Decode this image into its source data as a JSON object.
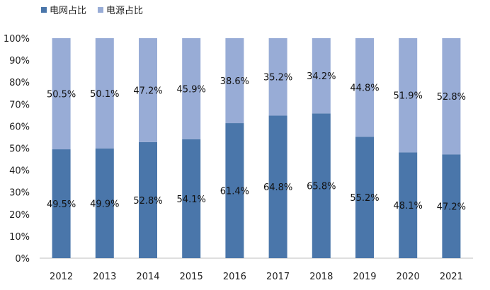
{
  "legend": {
    "series0": "电网占比",
    "series1": "电源占比"
  },
  "colors": {
    "grid_share": "#4a76aa",
    "source_share": "#98acd6"
  },
  "chart_data": {
    "type": "bar",
    "stacked": true,
    "title": "",
    "xlabel": "",
    "ylabel": "",
    "ylim": [
      0,
      100
    ],
    "y_ticks": [
      "0%",
      "10%",
      "20%",
      "30%",
      "40%",
      "50%",
      "60%",
      "70%",
      "80%",
      "90%",
      "100%"
    ],
    "categories": [
      "2012",
      "2013",
      "2014",
      "2015",
      "2016",
      "2017",
      "2018",
      "2019",
      "2020",
      "2021"
    ],
    "series": [
      {
        "name": "电网占比",
        "values": [
          49.5,
          49.9,
          52.8,
          54.1,
          61.4,
          64.8,
          65.8,
          55.2,
          48.1,
          47.2
        ],
        "labels": [
          "49.5%",
          "49.9%",
          "52.8%",
          "54.1%",
          "61.4%",
          "64.8%",
          "65.8%",
          "55.2%",
          "48.1%",
          "47.2%"
        ]
      },
      {
        "name": "电源占比",
        "values": [
          50.5,
          50.1,
          47.2,
          45.9,
          38.6,
          35.2,
          34.2,
          44.8,
          51.9,
          52.8
        ],
        "labels": [
          "50.5%",
          "50.1%",
          "47.2%",
          "45.9%",
          "38.6%",
          "35.2%",
          "34.2%",
          "44.8%",
          "51.9%",
          "52.8%"
        ]
      }
    ],
    "grid": false,
    "legend_position": "top-left"
  }
}
